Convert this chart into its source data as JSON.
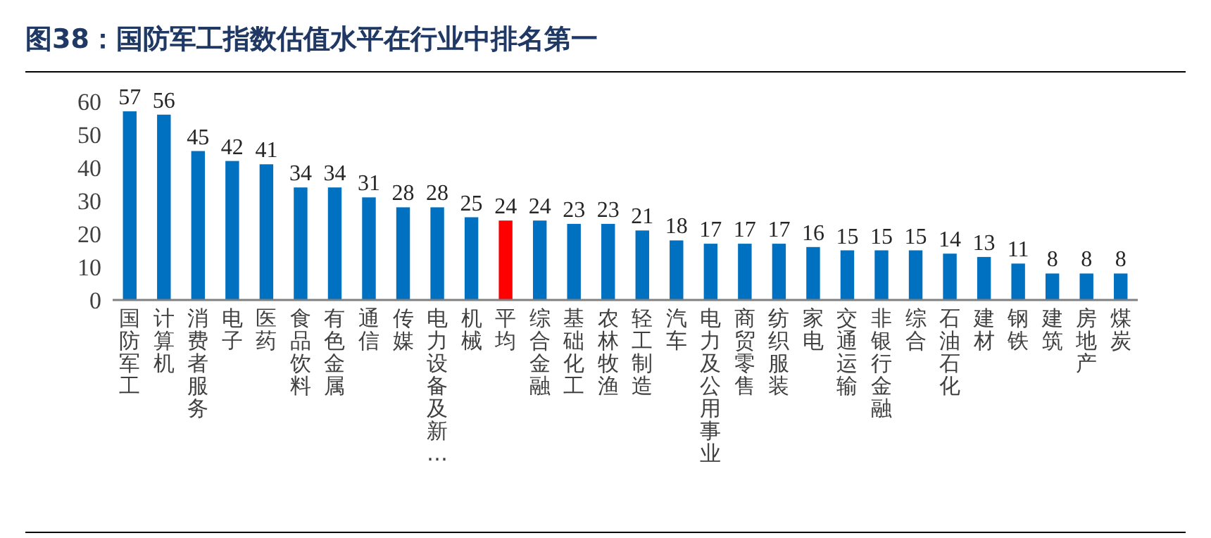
{
  "chart_data": {
    "type": "bar",
    "title": "图38：国防军工指数估值水平在行业中排名第一",
    "categories": [
      "国防军工",
      "计算机",
      "消费者服务",
      "电子",
      "医药",
      "食品饮料",
      "有色金属",
      "通信",
      "传媒",
      "电力设备及新…",
      "机械",
      "平均",
      "综合金融",
      "基础化工",
      "农林牧渔",
      "轻工制造",
      "汽车",
      "电力及公用事业",
      "商贸零售",
      "纺织服装",
      "家电",
      "交通运输",
      "非银行金融",
      "综合",
      "石油石化",
      "建材",
      "钢铁",
      "建筑",
      "房地产",
      "煤炭"
    ],
    "values": [
      57,
      56,
      45,
      42,
      41,
      34,
      34,
      31,
      28,
      28,
      25,
      24,
      24,
      23,
      23,
      21,
      18,
      17,
      17,
      17,
      16,
      15,
      15,
      15,
      14,
      13,
      11,
      8,
      8,
      8
    ],
    "colors": [
      "#0070c0",
      "#0070c0",
      "#0070c0",
      "#0070c0",
      "#0070c0",
      "#0070c0",
      "#0070c0",
      "#0070c0",
      "#0070c0",
      "#0070c0",
      "#0070c0",
      "#ff0000",
      "#0070c0",
      "#0070c0",
      "#0070c0",
      "#0070c0",
      "#0070c0",
      "#0070c0",
      "#0070c0",
      "#0070c0",
      "#0070c0",
      "#0070c0",
      "#0070c0",
      "#0070c0",
      "#0070c0",
      "#0070c0",
      "#0070c0",
      "#0070c0",
      "#0070c0",
      "#0070c0"
    ],
    "ylim": [
      0,
      60
    ],
    "yticks": [
      0,
      10,
      20,
      30,
      40,
      50,
      60
    ],
    "data_labels": true,
    "grid": false
  }
}
